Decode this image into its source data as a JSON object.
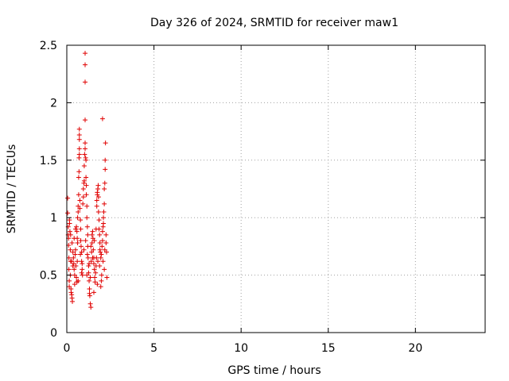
{
  "chart_data": {
    "type": "scatter",
    "title": "Day 326 of 2024, SRMTID for receiver maw1",
    "xlabel": "GPS time / hours",
    "ylabel": "SRMTID / TECUs",
    "xlim": [
      0,
      24
    ],
    "ylim": [
      0,
      2.5
    ],
    "xticks": [
      0,
      5,
      10,
      15,
      20
    ],
    "yticks": [
      0,
      0.5,
      1,
      1.5,
      2,
      2.5
    ],
    "xtick_labels": [
      "0",
      "5",
      "10",
      "15",
      "20"
    ],
    "ytick_labels": [
      "0",
      "0.5",
      "1",
      "1.5",
      "2",
      "2.5"
    ],
    "grid": true,
    "marker": "+",
    "color": "#e00000",
    "series": [
      {
        "name": "SRMTID",
        "points": [
          [
            0.05,
            1.17
          ],
          [
            0.05,
            1.04
          ],
          [
            0.08,
            0.92
          ],
          [
            0.08,
            0.85
          ],
          [
            0.1,
            0.82
          ],
          [
            0.1,
            0.76
          ],
          [
            0.12,
            0.65
          ],
          [
            0.12,
            0.55
          ],
          [
            0.14,
            0.45
          ],
          [
            0.14,
            0.4
          ],
          [
            0.16,
            0.95
          ],
          [
            0.18,
            0.88
          ],
          [
            0.2,
            0.72
          ],
          [
            0.22,
            0.62
          ],
          [
            0.24,
            0.38
          ],
          [
            0.25,
            0.35
          ],
          [
            0.28,
            0.33
          ],
          [
            0.3,
            0.3
          ],
          [
            0.32,
            0.27
          ],
          [
            0.35,
            0.7
          ],
          [
            0.38,
            0.65
          ],
          [
            0.4,
            0.6
          ],
          [
            0.42,
            0.55
          ],
          [
            0.45,
            0.5
          ],
          [
            0.48,
            0.68
          ],
          [
            0.5,
            0.72
          ],
          [
            0.52,
            0.58
          ],
          [
            0.55,
            0.48
          ],
          [
            0.58,
            0.44
          ],
          [
            0.6,
            0.62
          ],
          [
            0.55,
            0.92
          ],
          [
            0.58,
            0.88
          ],
          [
            0.6,
            0.82
          ],
          [
            0.62,
            1.0
          ],
          [
            0.65,
            1.05
          ],
          [
            0.65,
            1.1
          ],
          [
            0.68,
            1.2
          ],
          [
            0.68,
            1.35
          ],
          [
            0.7,
            1.4
          ],
          [
            0.7,
            1.52
          ],
          [
            0.72,
            1.55
          ],
          [
            0.72,
            1.6
          ],
          [
            0.72,
            1.68
          ],
          [
            0.72,
            1.72
          ],
          [
            0.72,
            1.77
          ],
          [
            0.75,
            1.15
          ],
          [
            0.75,
            1.08
          ],
          [
            0.78,
            0.98
          ],
          [
            0.8,
            0.9
          ],
          [
            0.8,
            0.8
          ],
          [
            0.82,
            0.75
          ],
          [
            0.85,
            0.7
          ],
          [
            0.85,
            0.62
          ],
          [
            0.88,
            0.55
          ],
          [
            0.9,
            0.5
          ],
          [
            0.92,
            1.12
          ],
          [
            0.95,
            1.18
          ],
          [
            0.95,
            1.25
          ],
          [
            0.98,
            1.3
          ],
          [
            1.0,
            1.32
          ],
          [
            1.0,
            1.45
          ],
          [
            1.02,
            1.55
          ],
          [
            1.05,
            1.6
          ],
          [
            1.05,
            1.65
          ],
          [
            1.08,
            1.52
          ],
          [
            1.1,
            1.5
          ],
          [
            1.1,
            1.35
          ],
          [
            1.12,
            1.28
          ],
          [
            1.12,
            1.2
          ],
          [
            1.15,
            1.1
          ],
          [
            1.15,
            1.0
          ],
          [
            1.18,
            0.92
          ],
          [
            1.2,
            0.85
          ],
          [
            1.2,
            0.75
          ],
          [
            1.22,
            0.65
          ],
          [
            1.25,
            0.58
          ],
          [
            1.25,
            0.52
          ],
          [
            1.28,
            0.45
          ],
          [
            1.3,
            0.38
          ],
          [
            1.3,
            0.34
          ],
          [
            1.05,
            2.43
          ],
          [
            1.05,
            2.33
          ],
          [
            1.05,
            2.18
          ],
          [
            1.05,
            1.85
          ],
          [
            1.32,
            0.32
          ],
          [
            1.35,
            0.25
          ],
          [
            1.38,
            0.22
          ],
          [
            1.4,
            0.62
          ],
          [
            1.42,
            0.7
          ],
          [
            1.45,
            0.78
          ],
          [
            1.45,
            0.85
          ],
          [
            1.48,
            0.88
          ],
          [
            1.5,
            0.82
          ],
          [
            1.52,
            0.72
          ],
          [
            1.55,
            0.65
          ],
          [
            1.55,
            0.6
          ],
          [
            1.58,
            0.55
          ],
          [
            1.6,
            0.48
          ],
          [
            1.62,
            0.44
          ],
          [
            1.65,
            0.52
          ],
          [
            1.68,
            0.58
          ],
          [
            1.7,
            0.65
          ],
          [
            1.72,
            1.1
          ],
          [
            1.72,
            1.15
          ],
          [
            1.75,
            1.2
          ],
          [
            1.75,
            1.22
          ],
          [
            1.78,
            1.25
          ],
          [
            1.8,
            1.28
          ],
          [
            1.82,
            1.18
          ],
          [
            1.82,
            1.05
          ],
          [
            1.85,
            0.98
          ],
          [
            1.85,
            0.9
          ],
          [
            1.88,
            0.85
          ],
          [
            1.9,
            0.78
          ],
          [
            1.9,
            0.72
          ],
          [
            1.92,
            0.7
          ],
          [
            1.95,
            0.65
          ],
          [
            1.95,
            0.4
          ],
          [
            1.98,
            0.45
          ],
          [
            2.0,
            0.5
          ],
          [
            2.02,
            0.75
          ],
          [
            2.05,
            0.8
          ],
          [
            2.05,
            0.88
          ],
          [
            2.08,
            0.92
          ],
          [
            2.1,
            0.95
          ],
          [
            2.1,
            1.0
          ],
          [
            2.12,
            1.05
          ],
          [
            2.15,
            1.12
          ],
          [
            2.15,
            1.25
          ],
          [
            2.18,
            1.3
          ],
          [
            2.2,
            1.42
          ],
          [
            2.2,
            1.5
          ],
          [
            2.05,
            1.86
          ],
          [
            2.22,
            1.65
          ],
          [
            2.25,
            0.85
          ],
          [
            2.25,
            0.78
          ],
          [
            2.28,
            0.7
          ],
          [
            2.3,
            0.48
          ],
          [
            0.15,
            0.98
          ],
          [
            0.22,
            0.85
          ],
          [
            0.3,
            0.78
          ],
          [
            0.42,
            0.82
          ],
          [
            0.5,
            0.9
          ],
          [
            0.62,
            0.78
          ],
          [
            0.78,
            0.68
          ],
          [
            0.88,
            0.6
          ],
          [
            0.98,
            0.72
          ],
          [
            1.08,
            0.8
          ],
          [
            1.18,
            0.68
          ],
          [
            1.28,
            0.6
          ],
          [
            1.38,
            0.75
          ],
          [
            1.48,
            0.65
          ],
          [
            1.58,
            0.8
          ],
          [
            1.68,
            0.9
          ],
          [
            1.78,
            0.62
          ],
          [
            1.88,
            0.58
          ],
          [
            1.98,
            0.68
          ],
          [
            2.08,
            0.62
          ],
          [
            2.18,
            0.72
          ],
          [
            0.35,
            0.58
          ],
          [
            0.45,
            0.42
          ],
          [
            0.65,
            0.45
          ],
          [
            0.85,
            0.52
          ],
          [
            1.15,
            0.5
          ],
          [
            1.35,
            0.48
          ],
          [
            1.55,
            0.35
          ],
          [
            1.75,
            0.42
          ],
          [
            2.15,
            0.55
          ],
          [
            0.2,
            0.5
          ],
          [
            0.28,
            0.62
          ]
        ]
      }
    ]
  }
}
